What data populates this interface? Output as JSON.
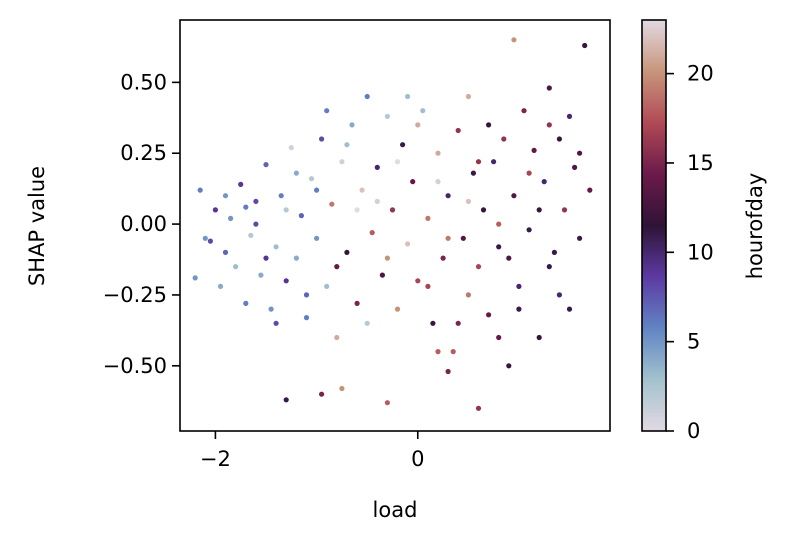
{
  "chart_data": {
    "type": "scatter",
    "title": "",
    "xlabel": "load",
    "ylabel": "SHAP value",
    "xlim": [
      -2.35,
      1.9
    ],
    "ylim": [
      -0.73,
      0.72
    ],
    "xticks": [
      -2,
      0
    ],
    "xtick_labels": [
      "−2",
      "0"
    ],
    "yticks": [
      -0.5,
      -0.25,
      0.0,
      0.25,
      0.5
    ],
    "ytick_labels": [
      "−0.50",
      "−0.25",
      "0.00",
      "0.25",
      "0.50"
    ],
    "grid": false,
    "colorbar": {
      "label": "hourofday",
      "range": [
        0,
        23
      ],
      "ticks": [
        0,
        5,
        10,
        15,
        20
      ],
      "tick_labels": [
        "0",
        "5",
        "10",
        "15",
        "20"
      ],
      "colormap": "twilight",
      "colors": [
        "#e2d9e2",
        "#a3c2cd",
        "#6184c4",
        "#5c3aa3",
        "#2f1336",
        "#6c1a4b",
        "#b04a55",
        "#c8957b",
        "#e2d9e2"
      ]
    },
    "points": [
      [
        -2.2,
        -0.19,
        5
      ],
      [
        -2.15,
        0.12,
        6
      ],
      [
        -2.05,
        -0.06,
        8
      ],
      [
        -2.0,
        0.05,
        9
      ],
      [
        -1.95,
        -0.22,
        4
      ],
      [
        -1.9,
        -0.1,
        7
      ],
      [
        -1.85,
        0.02,
        5
      ],
      [
        -1.8,
        -0.15,
        3
      ],
      [
        -1.75,
        0.14,
        9
      ],
      [
        -1.7,
        -0.28,
        6
      ],
      [
        -1.65,
        -0.04,
        2
      ],
      [
        -1.6,
        0.08,
        8
      ],
      [
        -1.55,
        -0.18,
        4
      ],
      [
        -1.5,
        0.21,
        7
      ],
      [
        -1.45,
        -0.3,
        5
      ],
      [
        -1.4,
        -0.08,
        3
      ],
      [
        -1.35,
        0.1,
        6
      ],
      [
        -1.3,
        -0.2,
        9
      ],
      [
        -1.25,
        0.27,
        1
      ],
      [
        -1.2,
        -0.12,
        4
      ],
      [
        -1.15,
        0.03,
        7
      ],
      [
        -1.1,
        -0.33,
        6
      ],
      [
        -1.05,
        0.16,
        2
      ],
      [
        -1.0,
        -0.05,
        5
      ],
      [
        -0.95,
        0.3,
        8
      ],
      [
        -0.9,
        -0.22,
        3
      ],
      [
        -0.85,
        0.07,
        19
      ],
      [
        -0.8,
        -0.4,
        21
      ],
      [
        -0.75,
        0.22,
        1
      ],
      [
        -0.7,
        -0.1,
        12
      ],
      [
        -0.65,
        0.35,
        4
      ],
      [
        -0.6,
        -0.28,
        15
      ],
      [
        -0.55,
        0.12,
        22
      ],
      [
        -0.5,
        0.45,
        6
      ],
      [
        -0.45,
        -0.03,
        18
      ],
      [
        -0.4,
        0.2,
        10
      ],
      [
        -0.35,
        -0.18,
        13
      ],
      [
        -0.3,
        0.38,
        2
      ],
      [
        -0.25,
        0.05,
        16
      ],
      [
        -0.2,
        -0.3,
        20
      ],
      [
        -0.15,
        0.28,
        11
      ],
      [
        -0.1,
        -0.07,
        22
      ],
      [
        -0.05,
        0.15,
        14
      ],
      [
        0.0,
        -0.2,
        17
      ],
      [
        0.05,
        0.4,
        3
      ],
      [
        0.1,
        0.02,
        19
      ],
      [
        0.15,
        -0.35,
        12
      ],
      [
        0.2,
        0.25,
        21
      ],
      [
        0.25,
        -0.12,
        15
      ],
      [
        0.3,
        0.1,
        10
      ],
      [
        0.35,
        -0.45,
        18
      ],
      [
        0.4,
        0.33,
        16
      ],
      [
        0.45,
        -0.05,
        13
      ],
      [
        0.5,
        -0.25,
        19
      ],
      [
        0.55,
        0.18,
        11
      ],
      [
        0.6,
        -0.15,
        17
      ],
      [
        0.65,
        0.05,
        12
      ],
      [
        0.7,
        -0.32,
        14
      ],
      [
        0.75,
        0.22,
        10
      ],
      [
        0.8,
        -0.08,
        11
      ],
      [
        0.85,
        0.3,
        16
      ],
      [
        0.9,
        -0.5,
        12
      ],
      [
        0.95,
        0.1,
        13
      ],
      [
        1.0,
        -0.22,
        10
      ],
      [
        1.05,
        0.4,
        15
      ],
      [
        1.1,
        -0.02,
        11
      ],
      [
        1.15,
        0.26,
        14
      ],
      [
        1.2,
        -0.4,
        12
      ],
      [
        1.25,
        0.15,
        10
      ],
      [
        1.3,
        0.48,
        13
      ],
      [
        1.35,
        -0.1,
        11
      ],
      [
        1.4,
        0.3,
        12
      ],
      [
        1.45,
        0.05,
        16
      ],
      [
        1.5,
        0.38,
        10
      ],
      [
        1.55,
        0.2,
        13
      ],
      [
        1.6,
        -0.05,
        11
      ],
      [
        1.65,
        0.63,
        12
      ],
      [
        1.7,
        0.12,
        14
      ],
      [
        0.95,
        0.65,
        20
      ],
      [
        -0.95,
        -0.6,
        15
      ],
      [
        -0.3,
        -0.63,
        18
      ],
      [
        -1.3,
        -0.62,
        11
      ],
      [
        0.3,
        -0.52,
        15
      ],
      [
        -0.75,
        -0.58,
        20
      ],
      [
        0.6,
        -0.65,
        16
      ],
      [
        -1.6,
        0.0,
        8
      ],
      [
        -1.3,
        0.05,
        2
      ],
      [
        -1.0,
        0.12,
        6
      ],
      [
        -0.6,
        0.05,
        0
      ],
      [
        -0.2,
        0.22,
        23
      ],
      [
        0.2,
        0.15,
        1
      ],
      [
        0.5,
        0.08,
        22
      ],
      [
        0.8,
        0.0,
        18
      ],
      [
        1.1,
        0.18,
        17
      ],
      [
        1.3,
        -0.15,
        11
      ],
      [
        -1.9,
        0.1,
        5
      ],
      [
        -1.5,
        -0.12,
        9
      ],
      [
        -1.1,
        -0.25,
        7
      ],
      [
        -0.7,
        0.28,
        3
      ],
      [
        -0.3,
        -0.12,
        20
      ],
      [
        0.1,
        -0.22,
        17
      ],
      [
        0.4,
        -0.35,
        15
      ],
      [
        0.7,
        0.35,
        12
      ],
      [
        1.0,
        -0.3,
        11
      ],
      [
        1.4,
        -0.25,
        10
      ],
      [
        -1.7,
        0.06,
        6
      ],
      [
        -1.2,
        0.18,
        4
      ],
      [
        -0.8,
        -0.15,
        14
      ],
      [
        -0.4,
        0.08,
        1
      ],
      [
        0.0,
        0.35,
        21
      ],
      [
        0.3,
        -0.05,
        19
      ],
      [
        0.6,
        0.22,
        16
      ],
      [
        0.9,
        -0.12,
        13
      ],
      [
        1.2,
        0.05,
        12
      ],
      [
        1.5,
        -0.3,
        11
      ],
      [
        -2.1,
        -0.05,
        5
      ],
      [
        -1.4,
        -0.35,
        8
      ],
      [
        -0.9,
        0.4,
        6
      ],
      [
        -0.5,
        -0.35,
        2
      ],
      [
        0.2,
        -0.45,
        18
      ],
      [
        0.5,
        0.45,
        21
      ],
      [
        0.8,
        -0.4,
        14
      ],
      [
        1.3,
        0.35,
        16
      ],
      [
        1.6,
        0.25,
        13
      ],
      [
        -0.1,
        0.45,
        3
      ]
    ]
  }
}
